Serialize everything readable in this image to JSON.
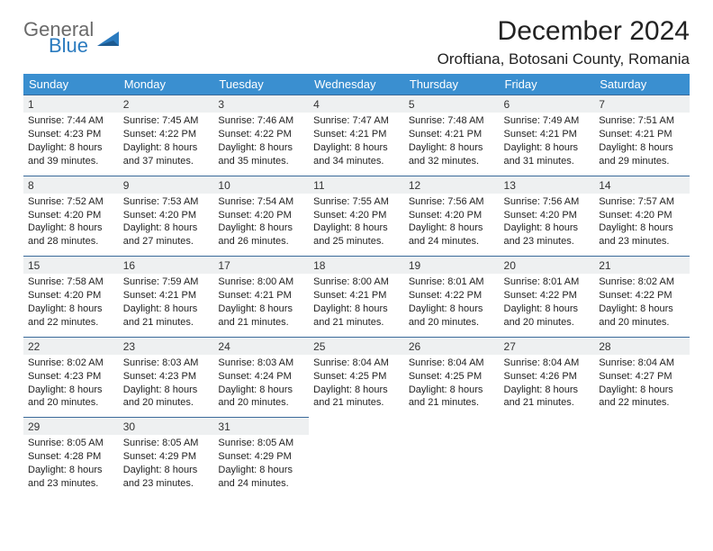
{
  "logo": {
    "word1": "General",
    "word2": "Blue"
  },
  "title": "December 2024",
  "location": "Oroftiana, Botosani County, Romania",
  "colors": {
    "header_bg": "#3a8fd0",
    "header_text": "#ffffff",
    "cell_border": "#3a6a9a",
    "daynum_bg": "#eef0f1",
    "logo_gray": "#6a6a6a",
    "logo_blue": "#2b7bbf"
  },
  "weekdays": [
    "Sunday",
    "Monday",
    "Tuesday",
    "Wednesday",
    "Thursday",
    "Friday",
    "Saturday"
  ],
  "weeks": [
    [
      {
        "n": "1",
        "sr": "Sunrise: 7:44 AM",
        "ss": "Sunset: 4:23 PM",
        "dl1": "Daylight: 8 hours",
        "dl2": "and 39 minutes."
      },
      {
        "n": "2",
        "sr": "Sunrise: 7:45 AM",
        "ss": "Sunset: 4:22 PM",
        "dl1": "Daylight: 8 hours",
        "dl2": "and 37 minutes."
      },
      {
        "n": "3",
        "sr": "Sunrise: 7:46 AM",
        "ss": "Sunset: 4:22 PM",
        "dl1": "Daylight: 8 hours",
        "dl2": "and 35 minutes."
      },
      {
        "n": "4",
        "sr": "Sunrise: 7:47 AM",
        "ss": "Sunset: 4:21 PM",
        "dl1": "Daylight: 8 hours",
        "dl2": "and 34 minutes."
      },
      {
        "n": "5",
        "sr": "Sunrise: 7:48 AM",
        "ss": "Sunset: 4:21 PM",
        "dl1": "Daylight: 8 hours",
        "dl2": "and 32 minutes."
      },
      {
        "n": "6",
        "sr": "Sunrise: 7:49 AM",
        "ss": "Sunset: 4:21 PM",
        "dl1": "Daylight: 8 hours",
        "dl2": "and 31 minutes."
      },
      {
        "n": "7",
        "sr": "Sunrise: 7:51 AM",
        "ss": "Sunset: 4:21 PM",
        "dl1": "Daylight: 8 hours",
        "dl2": "and 29 minutes."
      }
    ],
    [
      {
        "n": "8",
        "sr": "Sunrise: 7:52 AM",
        "ss": "Sunset: 4:20 PM",
        "dl1": "Daylight: 8 hours",
        "dl2": "and 28 minutes."
      },
      {
        "n": "9",
        "sr": "Sunrise: 7:53 AM",
        "ss": "Sunset: 4:20 PM",
        "dl1": "Daylight: 8 hours",
        "dl2": "and 27 minutes."
      },
      {
        "n": "10",
        "sr": "Sunrise: 7:54 AM",
        "ss": "Sunset: 4:20 PM",
        "dl1": "Daylight: 8 hours",
        "dl2": "and 26 minutes."
      },
      {
        "n": "11",
        "sr": "Sunrise: 7:55 AM",
        "ss": "Sunset: 4:20 PM",
        "dl1": "Daylight: 8 hours",
        "dl2": "and 25 minutes."
      },
      {
        "n": "12",
        "sr": "Sunrise: 7:56 AM",
        "ss": "Sunset: 4:20 PM",
        "dl1": "Daylight: 8 hours",
        "dl2": "and 24 minutes."
      },
      {
        "n": "13",
        "sr": "Sunrise: 7:56 AM",
        "ss": "Sunset: 4:20 PM",
        "dl1": "Daylight: 8 hours",
        "dl2": "and 23 minutes."
      },
      {
        "n": "14",
        "sr": "Sunrise: 7:57 AM",
        "ss": "Sunset: 4:20 PM",
        "dl1": "Daylight: 8 hours",
        "dl2": "and 23 minutes."
      }
    ],
    [
      {
        "n": "15",
        "sr": "Sunrise: 7:58 AM",
        "ss": "Sunset: 4:20 PM",
        "dl1": "Daylight: 8 hours",
        "dl2": "and 22 minutes."
      },
      {
        "n": "16",
        "sr": "Sunrise: 7:59 AM",
        "ss": "Sunset: 4:21 PM",
        "dl1": "Daylight: 8 hours",
        "dl2": "and 21 minutes."
      },
      {
        "n": "17",
        "sr": "Sunrise: 8:00 AM",
        "ss": "Sunset: 4:21 PM",
        "dl1": "Daylight: 8 hours",
        "dl2": "and 21 minutes."
      },
      {
        "n": "18",
        "sr": "Sunrise: 8:00 AM",
        "ss": "Sunset: 4:21 PM",
        "dl1": "Daylight: 8 hours",
        "dl2": "and 21 minutes."
      },
      {
        "n": "19",
        "sr": "Sunrise: 8:01 AM",
        "ss": "Sunset: 4:22 PM",
        "dl1": "Daylight: 8 hours",
        "dl2": "and 20 minutes."
      },
      {
        "n": "20",
        "sr": "Sunrise: 8:01 AM",
        "ss": "Sunset: 4:22 PM",
        "dl1": "Daylight: 8 hours",
        "dl2": "and 20 minutes."
      },
      {
        "n": "21",
        "sr": "Sunrise: 8:02 AM",
        "ss": "Sunset: 4:22 PM",
        "dl1": "Daylight: 8 hours",
        "dl2": "and 20 minutes."
      }
    ],
    [
      {
        "n": "22",
        "sr": "Sunrise: 8:02 AM",
        "ss": "Sunset: 4:23 PM",
        "dl1": "Daylight: 8 hours",
        "dl2": "and 20 minutes."
      },
      {
        "n": "23",
        "sr": "Sunrise: 8:03 AM",
        "ss": "Sunset: 4:23 PM",
        "dl1": "Daylight: 8 hours",
        "dl2": "and 20 minutes."
      },
      {
        "n": "24",
        "sr": "Sunrise: 8:03 AM",
        "ss": "Sunset: 4:24 PM",
        "dl1": "Daylight: 8 hours",
        "dl2": "and 20 minutes."
      },
      {
        "n": "25",
        "sr": "Sunrise: 8:04 AM",
        "ss": "Sunset: 4:25 PM",
        "dl1": "Daylight: 8 hours",
        "dl2": "and 21 minutes."
      },
      {
        "n": "26",
        "sr": "Sunrise: 8:04 AM",
        "ss": "Sunset: 4:25 PM",
        "dl1": "Daylight: 8 hours",
        "dl2": "and 21 minutes."
      },
      {
        "n": "27",
        "sr": "Sunrise: 8:04 AM",
        "ss": "Sunset: 4:26 PM",
        "dl1": "Daylight: 8 hours",
        "dl2": "and 21 minutes."
      },
      {
        "n": "28",
        "sr": "Sunrise: 8:04 AM",
        "ss": "Sunset: 4:27 PM",
        "dl1": "Daylight: 8 hours",
        "dl2": "and 22 minutes."
      }
    ],
    [
      {
        "n": "29",
        "sr": "Sunrise: 8:05 AM",
        "ss": "Sunset: 4:28 PM",
        "dl1": "Daylight: 8 hours",
        "dl2": "and 23 minutes."
      },
      {
        "n": "30",
        "sr": "Sunrise: 8:05 AM",
        "ss": "Sunset: 4:29 PM",
        "dl1": "Daylight: 8 hours",
        "dl2": "and 23 minutes."
      },
      {
        "n": "31",
        "sr": "Sunrise: 8:05 AM",
        "ss": "Sunset: 4:29 PM",
        "dl1": "Daylight: 8 hours",
        "dl2": "and 24 minutes."
      },
      null,
      null,
      null,
      null
    ]
  ]
}
